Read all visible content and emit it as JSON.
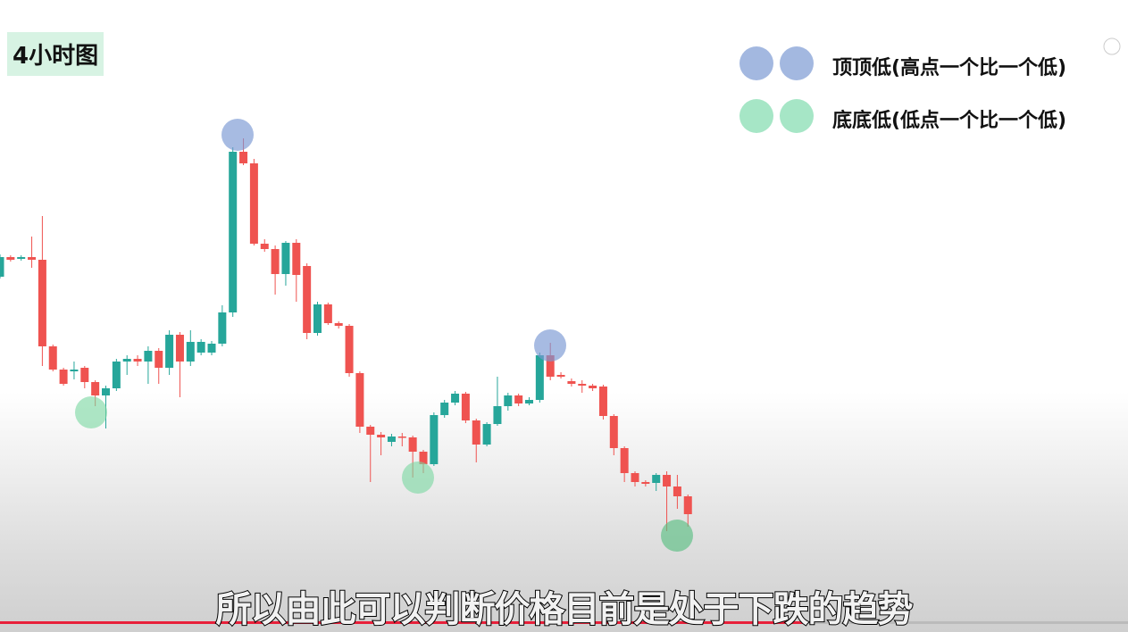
{
  "label": "4小时图",
  "legend": [
    "顶顶低(高点一个比一个低)",
    "底底低(低点一个比一个低)"
  ],
  "caption": "所以由此可以判断价格目前是处于下跌的趋势",
  "chart_data": {
    "type": "candlestick",
    "up_color": "#26a69a",
    "down_color": "#ef5350",
    "ylim": [
      0,
      660
    ],
    "open": [
      350,
      372,
      370,
      372,
      369,
      272,
      246,
      244,
      248,
      232,
      217,
      225,
      255,
      258,
      255,
      267,
      248,
      285,
      255,
      265,
      265,
      275,
      310,
      490,
      477,
      387,
      381,
      353,
      388,
      362,
      287,
      319,
      298,
      295,
      242,
      182,
      173,
      165,
      171,
      170,
      154,
      140,
      195,
      209,
      219,
      189,
      162,
      185,
      205,
      217,
      208,
      212,
      262,
      240,
      233,
      230,
      228,
      227,
      194,
      158,
      130,
      120,
      119,
      128,
      115,
      104
    ],
    "close": [
      372,
      369,
      372,
      369,
      272,
      246,
      230,
      246,
      232,
      217,
      225,
      255,
      258,
      255,
      267,
      248,
      285,
      255,
      277,
      277,
      275,
      310,
      490,
      477,
      387,
      381,
      353,
      388,
      352,
      287,
      319,
      298,
      295,
      242,
      182,
      173,
      170,
      171,
      170,
      154,
      140,
      195,
      209,
      219,
      189,
      162,
      185,
      205,
      217,
      208,
      212,
      262,
      238,
      238,
      230,
      228,
      225,
      194,
      158,
      130,
      120,
      118,
      128,
      115,
      104,
      84
    ],
    "high": [
      375,
      374,
      374,
      395,
      418,
      274,
      248,
      255,
      250,
      234,
      228,
      258,
      262,
      262,
      272,
      270,
      290,
      288,
      290,
      280,
      278,
      318,
      495,
      505,
      482,
      392,
      385,
      390,
      392,
      365,
      322,
      321,
      300,
      297,
      244,
      184,
      176,
      174,
      175,
      172,
      156,
      198,
      212,
      222,
      221,
      191,
      187,
      238,
      220,
      219,
      215,
      265,
      276,
      243,
      236,
      234,
      230,
      229,
      196,
      160,
      132,
      122,
      130,
      132,
      128,
      106
    ],
    "low": [
      348,
      367,
      368,
      360,
      250,
      244,
      228,
      235,
      225,
      205,
      180,
      222,
      240,
      250,
      230,
      230,
      240,
      215,
      250,
      262,
      262,
      272,
      305,
      475,
      385,
      378,
      330,
      340,
      322,
      280,
      284,
      296,
      292,
      238,
      175,
      120,
      150,
      160,
      160,
      125,
      130,
      138,
      192,
      206,
      186,
      142,
      160,
      183,
      200,
      205,
      206,
      209,
      234,
      236,
      227,
      220,
      222,
      190,
      150,
      120,
      115,
      115,
      110,
      65,
      90,
      70
    ]
  }
}
